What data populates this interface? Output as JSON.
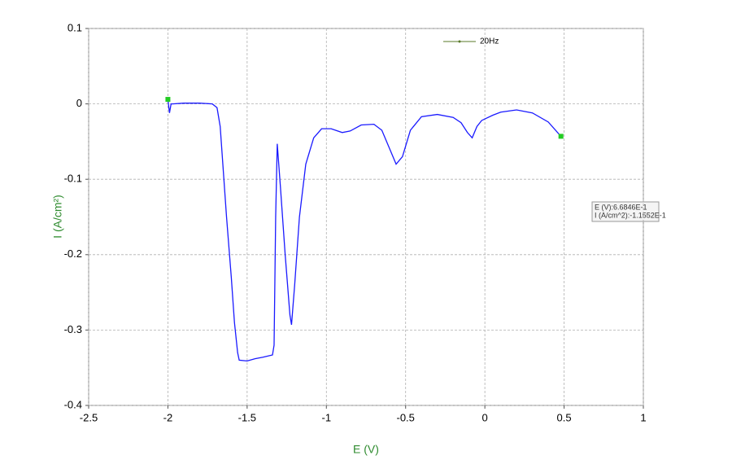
{
  "chart_data": {
    "type": "line",
    "xlabel": "E (V)",
    "ylabel": "I (A/cm²)",
    "x": [
      -2.0,
      -1.99,
      -1.98,
      -1.97,
      -1.9,
      -1.8,
      -1.72,
      -1.69,
      -1.67,
      -1.66,
      -1.63,
      -1.6,
      -1.58,
      -1.56,
      -1.55,
      -1.5,
      -1.45,
      -1.4,
      -1.34,
      -1.33,
      -1.32,
      -1.31,
      -1.29,
      -1.26,
      -1.23,
      -1.22,
      -1.2,
      -1.17,
      -1.13,
      -1.08,
      -1.03,
      -0.97,
      -0.9,
      -0.85,
      -0.78,
      -0.7,
      -0.65,
      -0.6,
      -0.56,
      -0.52,
      -0.47,
      -0.4,
      -0.3,
      -0.2,
      -0.15,
      -0.11,
      -0.08,
      -0.05,
      -0.02,
      0.05,
      0.1,
      0.2,
      0.3,
      0.4,
      0.48
    ],
    "series": [
      {
        "name": "20Hz",
        "color": "#5a7a2a",
        "line_color": "#1a1aff",
        "values": [
          0.006,
          -0.012,
          0.0,
          0.0,
          0.001,
          0.001,
          0.0,
          -0.005,
          -0.03,
          -0.06,
          -0.15,
          -0.23,
          -0.29,
          -0.33,
          -0.34,
          -0.341,
          -0.338,
          -0.336,
          -0.333,
          -0.32,
          -0.15,
          -0.053,
          -0.11,
          -0.2,
          -0.28,
          -0.293,
          -0.24,
          -0.15,
          -0.08,
          -0.045,
          -0.033,
          -0.033,
          -0.038,
          -0.036,
          -0.028,
          -0.027,
          -0.035,
          -0.06,
          -0.08,
          -0.07,
          -0.035,
          -0.017,
          -0.014,
          -0.018,
          -0.025,
          -0.038,
          -0.045,
          -0.03,
          -0.022,
          -0.015,
          -0.011,
          -0.008,
          -0.012,
          -0.024,
          -0.043
        ]
      }
    ],
    "markers": {
      "x": [
        -2.0,
        0.48
      ],
      "values": [
        0.006,
        -0.043
      ],
      "color": "#22cc22"
    },
    "xlim": [
      -2.5,
      1
    ],
    "xticks": [
      -2.5,
      -2,
      -1.5,
      -1,
      -0.5,
      0,
      0.5,
      1
    ],
    "ylim": [
      -0.4,
      0.1
    ],
    "yticks": [
      0.1,
      0,
      -0.1,
      -0.2,
      -0.3,
      -0.4
    ],
    "grid": true,
    "legend": "top",
    "annotations": [
      "E (V):6.6846E-1",
      "I (A/cm^2):-1.1552E-1"
    ]
  }
}
